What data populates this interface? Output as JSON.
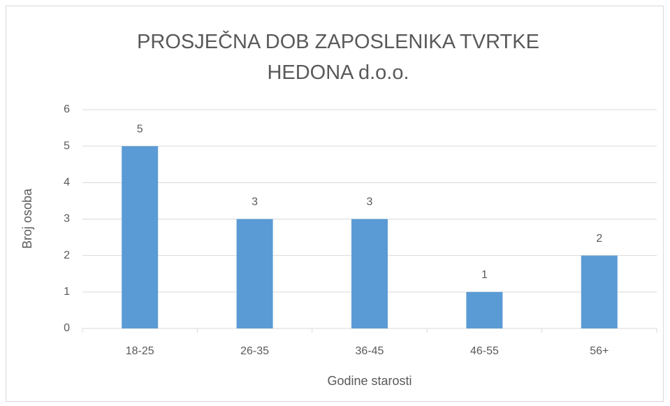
{
  "chart_data": {
    "type": "bar",
    "title": "PROSJEČNA DOB ZAPOSLENIKA TVRTKE HEDONA d.o.o.",
    "x_label": "Godine starosti",
    "y_label": "Broj osoba",
    "categories": [
      "18-25",
      "26-35",
      "36-45",
      "46-55",
      "56+"
    ],
    "values": [
      5,
      3,
      3,
      1,
      2
    ],
    "color": "#5b9bd5",
    "ylim": [
      0,
      6
    ],
    "yticks": [
      0,
      1,
      2,
      3,
      4,
      5,
      6
    ],
    "grid": true,
    "data_labels": true
  }
}
